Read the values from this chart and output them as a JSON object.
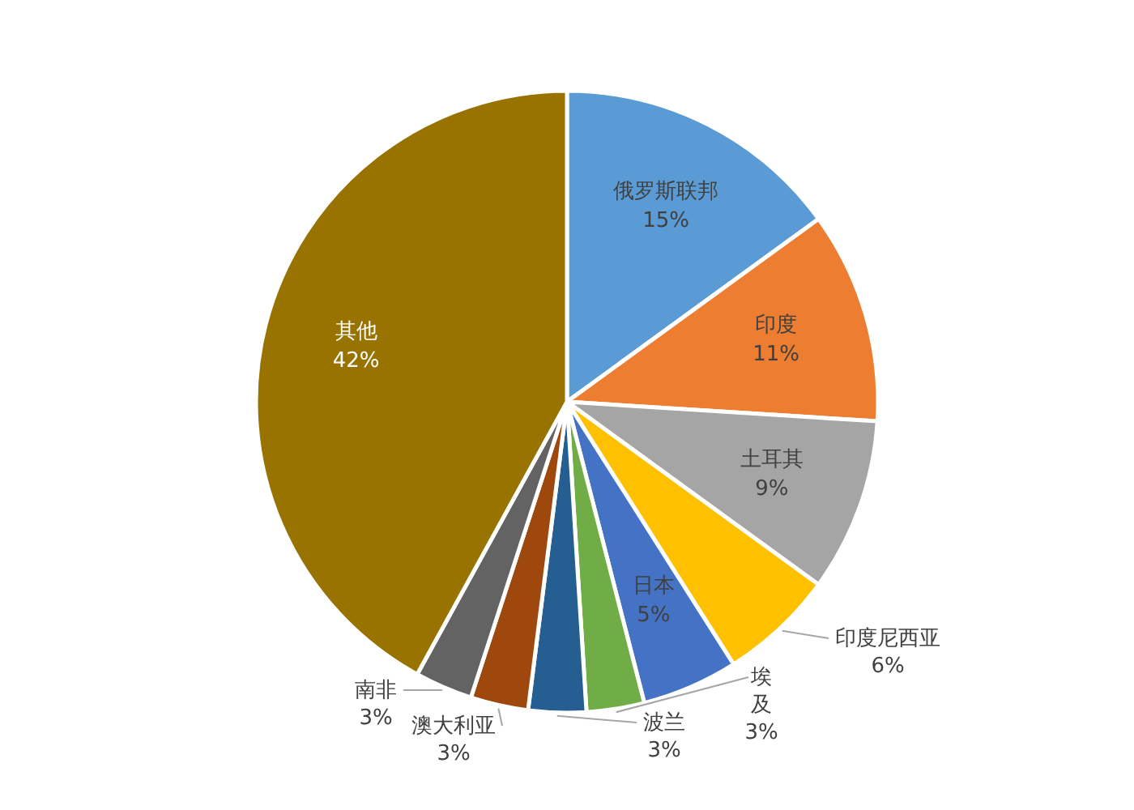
{
  "chart_data": {
    "type": "pie",
    "categories": [
      "俄罗斯联邦",
      "印度",
      "土耳其",
      "印度尼西亚",
      "日本",
      "埃及",
      "波兰",
      "澳大利亚",
      "南非",
      "其他"
    ],
    "values": [
      15,
      11,
      9,
      6,
      5,
      3,
      3,
      3,
      3,
      42
    ],
    "colors": [
      "#5b9bd5",
      "#ed7d31",
      "#a5a5a5",
      "#ffc000",
      "#4472c4",
      "#70ad47",
      "#255e91",
      "#9e480e",
      "#636363",
      "#997300"
    ],
    "value_labels": [
      "15%",
      "11%",
      "9%",
      "6%",
      "5%",
      "3%",
      "3%",
      "3%",
      "3%",
      "42%"
    ]
  }
}
